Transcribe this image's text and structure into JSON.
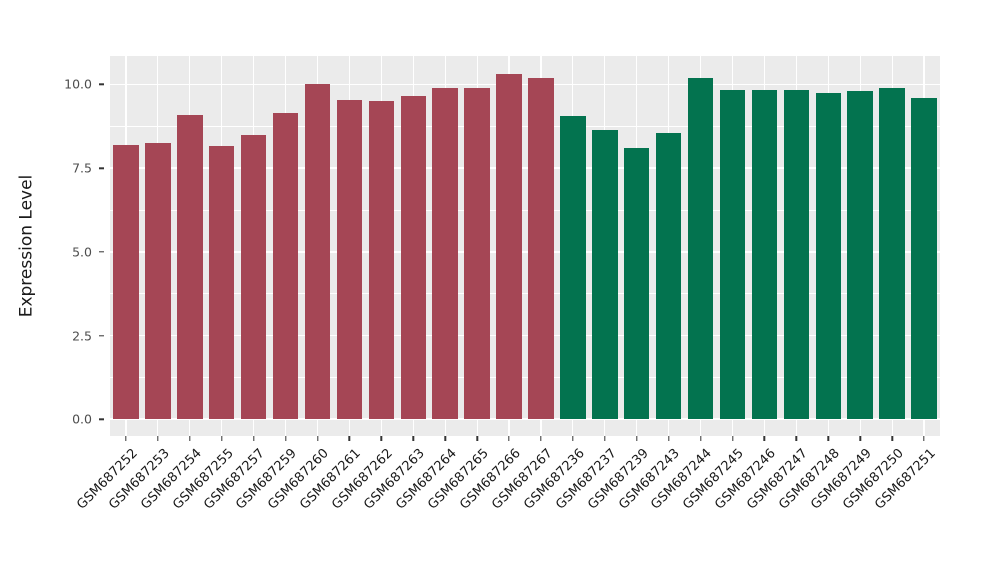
{
  "chart_data": {
    "type": "bar",
    "title": "",
    "ylabel": "Expression Level",
    "xlabel": "",
    "ylim": [
      -0.5,
      10.85
    ],
    "yticks": [
      0,
      2.5,
      5,
      7.5,
      10
    ],
    "grid": true,
    "legend": "none",
    "panel_background": "#ebebeb",
    "gridline_color": "#ffffff",
    "categories": [
      "GSM687252",
      "GSM687253",
      "GSM687254",
      "GSM687255",
      "GSM687257",
      "GSM687259",
      "GSM687260",
      "GSM687261",
      "GSM687262",
      "GSM687263",
      "GSM687264",
      "GSM687265",
      "GSM687266",
      "GSM687267",
      "GSM687236",
      "GSM687237",
      "GSM687239",
      "GSM687243",
      "GSM687244",
      "GSM687245",
      "GSM687246",
      "GSM687247",
      "GSM687248",
      "GSM687249",
      "GSM687250",
      "GSM687251"
    ],
    "values": [
      8.2,
      8.25,
      9.1,
      8.15,
      8.5,
      9.15,
      10.0,
      9.55,
      9.5,
      9.65,
      9.9,
      9.9,
      10.3,
      10.2,
      9.05,
      8.65,
      8.1,
      8.55,
      10.2,
      9.85,
      9.85,
      9.85,
      9.75,
      9.8,
      9.9,
      9.6
    ],
    "groups": [
      "g1",
      "g1",
      "g1",
      "g1",
      "g1",
      "g1",
      "g1",
      "g1",
      "g1",
      "g1",
      "g1",
      "g1",
      "g1",
      "g1",
      "g2",
      "g2",
      "g2",
      "g2",
      "g2",
      "g2",
      "g2",
      "g2",
      "g2",
      "g2",
      "g2",
      "g2"
    ],
    "group_colors": {
      "g1": "#A54655",
      "g2": "#03734F"
    }
  }
}
